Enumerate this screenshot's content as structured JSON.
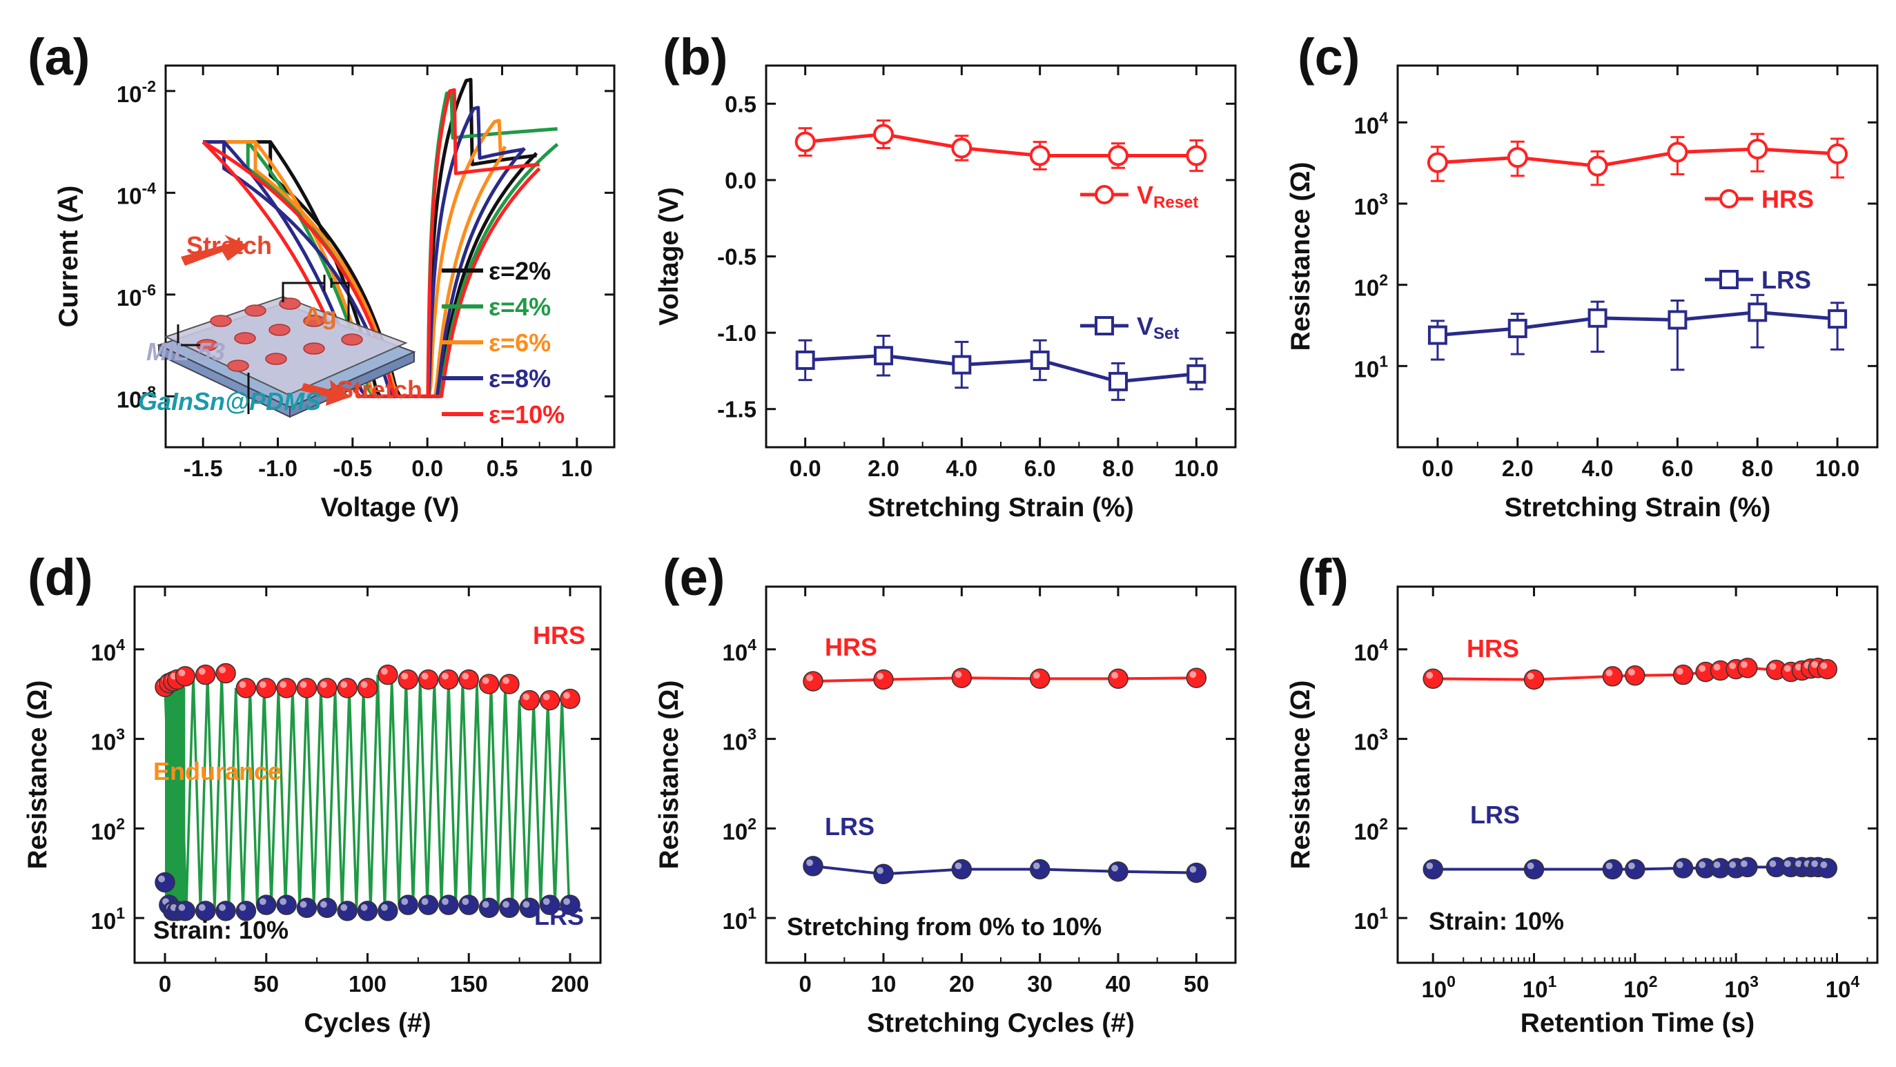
{
  "colors": {
    "red": "#ff2222",
    "blue": "#2a2a8a",
    "green": "#1f9a45",
    "orange": "#ff8c1a",
    "black": "#111111"
  },
  "chart_data": [
    {
      "id": "a",
      "panel_label": "(a)",
      "type": "line",
      "xlabel": "Voltage (V)",
      "ylabel": "Current (A)",
      "xlim": [
        -1.75,
        1.25
      ],
      "yscale": "log",
      "ylim_exp": [
        -9,
        -1.5
      ],
      "xticks": [
        -1.5,
        -1.0,
        -0.5,
        0.0,
        0.5,
        1.0
      ],
      "xtick_labels": [
        "-1.5",
        "-1.0",
        "-0.5",
        "0.0",
        "0.5",
        "1.0"
      ],
      "yticks_exp": [
        -8,
        -6,
        -4,
        -2
      ],
      "ytick_labels": [
        {
          "base": "10",
          "exp": "-8"
        },
        {
          "base": "10",
          "exp": "-6"
        },
        {
          "base": "10",
          "exp": "-4"
        },
        {
          "base": "10",
          "exp": "-2"
        }
      ],
      "compliance_current": 0.001,
      "series": [
        {
          "name": "ε=2%",
          "color": "#111111",
          "set_v": 0.26,
          "set_i": 0.016,
          "reset_v": -1.05,
          "reset_i": 0.00022,
          "xmax": 0.73,
          "lrs_i": 0.0002,
          "hrs_i": 0.00012
        },
        {
          "name": "ε=4%",
          "color": "#1f9a45",
          "set_v": 0.13,
          "set_i": 0.009,
          "reset_v": -1.2,
          "reset_i": 0.0003,
          "xmax": 0.87,
          "lrs_i": 0.0003,
          "hrs_i": 0.0004
        },
        {
          "name": "ε=6%",
          "color": "#ff8c1a",
          "set_v": 0.45,
          "set_i": 0.0025,
          "reset_v": -1.15,
          "reset_i": 0.00028,
          "xmax": 0.52,
          "lrs_i": 0.00022,
          "hrs_i": 0.00018
        },
        {
          "name": "ε=8%",
          "color": "#2a2a8a",
          "set_v": 0.31,
          "set_i": 0.0045,
          "reset_v": -1.36,
          "reset_i": 0.0003,
          "xmax": 0.65,
          "lrs_i": 0.00025,
          "hrs_i": 0.00016
        },
        {
          "name": "ε=10%",
          "color": "#ff2222",
          "set_v": 0.15,
          "set_i": 0.01,
          "reset_v": -1.5,
          "reset_i": 0.001,
          "xmax": 0.75,
          "lrs_i": 0.0001,
          "hrs_i": 8e-05
        }
      ],
      "inset": {
        "labels": [
          "Stretch",
          "Stretch",
          "Ag",
          "MIL-53",
          "GaInSn@PDMS"
        ]
      }
    },
    {
      "id": "b",
      "panel_label": "(b)",
      "type": "line",
      "xlabel": "Stretching Strain (%)",
      "ylabel": "Voltage (V)",
      "xlim": [
        -1,
        11
      ],
      "ylim": [
        -1.75,
        0.75
      ],
      "xticks": [
        0,
        2,
        4,
        6,
        8,
        10
      ],
      "xtick_labels": [
        "0.0",
        "2.0",
        "4.0",
        "6.0",
        "8.0",
        "10.0"
      ],
      "yticks": [
        -1.5,
        -1.0,
        -0.5,
        0.0,
        0.5
      ],
      "ytick_labels": [
        "-1.5",
        "-1.0",
        "-0.5",
        "0.0",
        "0.5"
      ],
      "series": [
        {
          "name": "V",
          "sub": "Reset",
          "color": "#ff2222",
          "marker": "circle",
          "x": [
            0,
            2,
            4,
            6,
            8,
            10
          ],
          "y": [
            0.25,
            0.3,
            0.21,
            0.16,
            0.16,
            0.16
          ],
          "err": [
            0.09,
            0.09,
            0.08,
            0.09,
            0.08,
            0.1
          ]
        },
        {
          "name": "V",
          "sub": "Set",
          "color": "#2a2a8a",
          "marker": "square",
          "x": [
            0,
            2,
            4,
            6,
            8,
            10
          ],
          "y": [
            -1.18,
            -1.15,
            -1.21,
            -1.18,
            -1.32,
            -1.27
          ],
          "err": [
            0.13,
            0.13,
            0.15,
            0.13,
            0.12,
            0.1
          ]
        }
      ]
    },
    {
      "id": "c",
      "panel_label": "(c)",
      "type": "line",
      "xlabel": "Stretching Strain (%)",
      "ylabel": "Resistance (Ω)",
      "xlim": [
        -1,
        11
      ],
      "yscale": "log",
      "ylim_exp": [
        0,
        4.7
      ],
      "xticks": [
        0,
        2,
        4,
        6,
        8,
        10
      ],
      "xtick_labels": [
        "0.0",
        "2.0",
        "4.0",
        "6.0",
        "8.0",
        "10.0"
      ],
      "yticks_exp": [
        1,
        2,
        3,
        4
      ],
      "ytick_labels": [
        {
          "base": "10",
          "exp": "1"
        },
        {
          "base": "10",
          "exp": "2"
        },
        {
          "base": "10",
          "exp": "3"
        },
        {
          "base": "10",
          "exp": "4"
        }
      ],
      "series": [
        {
          "name": "HRS",
          "color": "#ff2222",
          "marker": "circle",
          "x": [
            0,
            2,
            4,
            6,
            8,
            10
          ],
          "y": [
            3200,
            3700,
            2900,
            4300,
            4700,
            4100
          ],
          "err_lo": [
            1900,
            2200,
            1700,
            2300,
            2500,
            2100
          ],
          "err_hi": [
            5000,
            5800,
            4400,
            6600,
            7200,
            6300
          ]
        },
        {
          "name": "LRS",
          "color": "#2a2a8a",
          "marker": "square",
          "x": [
            0,
            2,
            4,
            6,
            8,
            10
          ],
          "y": [
            24,
            29,
            39,
            37,
            46,
            38
          ],
          "err_lo": [
            12,
            14,
            15,
            9,
            17,
            16
          ],
          "err_hi": [
            36,
            44,
            62,
            64,
            75,
            60
          ]
        }
      ]
    },
    {
      "id": "d",
      "panel_label": "(d)",
      "type": "scatter",
      "xlabel": "Cycles (#)",
      "ylabel": "Resistance (Ω)",
      "xlim": [
        -15,
        215
      ],
      "yscale": "log",
      "ylim_exp": [
        0.5,
        4.7
      ],
      "xticks": [
        0,
        50,
        100,
        150,
        200
      ],
      "xtick_labels": [
        "0",
        "50",
        "100",
        "150",
        "200"
      ],
      "yticks_exp": [
        1,
        2,
        3,
        4
      ],
      "ytick_labels": [
        {
          "base": "10",
          "exp": "1"
        },
        {
          "base": "10",
          "exp": "2"
        },
        {
          "base": "10",
          "exp": "3"
        },
        {
          "base": "10",
          "exp": "4"
        }
      ],
      "annotations": [
        "HRS",
        "LRS",
        "Endurance",
        "Strain: 10%"
      ],
      "series": [
        {
          "name": "HRS",
          "color": "#ff2222",
          "x": [
            0,
            2,
            4,
            6,
            10,
            20,
            30,
            40,
            50,
            60,
            70,
            80,
            90,
            100,
            110,
            120,
            130,
            140,
            150,
            160,
            170,
            180,
            190,
            200
          ],
          "y": [
            3800,
            4200,
            4400,
            4600,
            5000,
            5200,
            5400,
            3700,
            3700,
            3700,
            3700,
            3700,
            3700,
            3700,
            5200,
            4600,
            4600,
            4600,
            4600,
            4100,
            4100,
            2700,
            2700,
            2800
          ]
        },
        {
          "name": "LRS",
          "color": "#2a2a8a",
          "x": [
            0,
            2,
            4,
            6,
            10,
            20,
            30,
            40,
            50,
            60,
            70,
            80,
            90,
            100,
            110,
            120,
            130,
            140,
            150,
            160,
            170,
            180,
            190,
            200
          ],
          "y": [
            25,
            14,
            12,
            12,
            12,
            12,
            12,
            12,
            14,
            14,
            13,
            13,
            12,
            12,
            12,
            14,
            14,
            14,
            14,
            13,
            13,
            13,
            14,
            14
          ]
        }
      ]
    },
    {
      "id": "e",
      "panel_label": "(e)",
      "type": "line",
      "xlabel": "Stretching Cycles (#)",
      "ylabel": "Resistance (Ω)",
      "xlim": [
        -5,
        55
      ],
      "yscale": "log",
      "ylim_exp": [
        0.5,
        4.7
      ],
      "xticks": [
        0,
        10,
        20,
        30,
        40,
        50
      ],
      "xtick_labels": [
        "0",
        "10",
        "20",
        "30",
        "40",
        "50"
      ],
      "yticks_exp": [
        1,
        2,
        3,
        4
      ],
      "ytick_labels": [
        {
          "base": "10",
          "exp": "1"
        },
        {
          "base": "10",
          "exp": "2"
        },
        {
          "base": "10",
          "exp": "3"
        },
        {
          "base": "10",
          "exp": "4"
        }
      ],
      "annotations": [
        "HRS",
        "LRS",
        "Stretching from 0% to 10%"
      ],
      "series": [
        {
          "name": "HRS",
          "color": "#ff2222",
          "x": [
            1,
            10,
            20,
            30,
            40,
            50
          ],
          "y": [
            4400,
            4600,
            4800,
            4700,
            4700,
            4800
          ]
        },
        {
          "name": "LRS",
          "color": "#2a2a8a",
          "x": [
            1,
            10,
            20,
            30,
            40,
            50
          ],
          "y": [
            38,
            31,
            35,
            35,
            33,
            32
          ]
        }
      ]
    },
    {
      "id": "f",
      "panel_label": "(f)",
      "type": "line",
      "xlabel": "Retention Time (s)",
      "ylabel": "Resistance (Ω)",
      "xscale": "log",
      "xlim_exp": [
        -0.35,
        4.4
      ],
      "yscale": "log",
      "ylim_exp": [
        0.5,
        4.7
      ],
      "xticks_exp": [
        0,
        1,
        2,
        3,
        4
      ],
      "xtick_labels": [
        {
          "base": "10",
          "exp": "0"
        },
        {
          "base": "10",
          "exp": "1"
        },
        {
          "base": "10",
          "exp": "2"
        },
        {
          "base": "10",
          "exp": "3"
        },
        {
          "base": "10",
          "exp": "4"
        }
      ],
      "yticks_exp": [
        1,
        2,
        3,
        4
      ],
      "ytick_labels": [
        {
          "base": "10",
          "exp": "1"
        },
        {
          "base": "10",
          "exp": "2"
        },
        {
          "base": "10",
          "exp": "3"
        },
        {
          "base": "10",
          "exp": "4"
        }
      ],
      "annotations": [
        "HRS",
        "LRS",
        "Strain: 10%"
      ],
      "series": [
        {
          "name": "HRS",
          "color": "#ff2222",
          "x": [
            1,
            10,
            60,
            100,
            300,
            500,
            700,
            1000,
            1300,
            2500,
            3500,
            4500,
            5500,
            6500,
            8000
          ],
          "y": [
            4700,
            4600,
            5000,
            5100,
            5200,
            5600,
            5800,
            6000,
            6200,
            5900,
            5600,
            5800,
            6100,
            6200,
            6000
          ]
        },
        {
          "name": "LRS",
          "color": "#2a2a8a",
          "x": [
            1,
            10,
            60,
            100,
            300,
            500,
            700,
            1000,
            1300,
            2500,
            3500,
            4500,
            5500,
            6500,
            8000
          ],
          "y": [
            35,
            35,
            35,
            35,
            36,
            36,
            36,
            36,
            37,
            37,
            37,
            37,
            37,
            37,
            36
          ]
        }
      ]
    }
  ]
}
